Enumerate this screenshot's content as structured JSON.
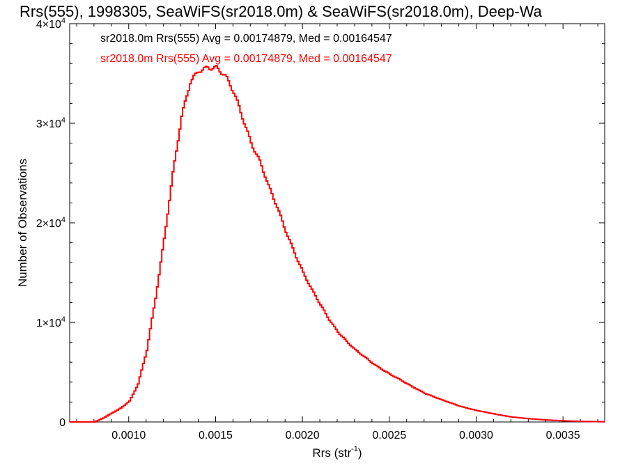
{
  "chart_data": {
    "type": "line",
    "title": "Rrs(555), 1998305, SeaWiFS(sr2018.0m) & SeaWiFS(sr2018.0m), Deep-Wa",
    "xlabel": {
      "base": "Rrs (str",
      "sup": "-1",
      "tail": ")"
    },
    "ylabel": "Number of Observations",
    "xlim": [
      0.00066,
      0.00374
    ],
    "ylim": [
      0,
      40000
    ],
    "grid": false,
    "legend_position": "top-left",
    "x_ticks": [
      {
        "value": 0.001,
        "label": "0.0010"
      },
      {
        "value": 0.0015,
        "label": "0.0015"
      },
      {
        "value": 0.002,
        "label": "0.0020"
      },
      {
        "value": 0.0025,
        "label": "0.0025"
      },
      {
        "value": 0.003,
        "label": "0.0030"
      },
      {
        "value": 0.0035,
        "label": "0.0035"
      }
    ],
    "y_ticks": [
      {
        "value": 0,
        "mant": "0",
        "sup": ""
      },
      {
        "value": 10000,
        "mant": "1×10",
        "sup": "4"
      },
      {
        "value": 20000,
        "mant": "2×10",
        "sup": "4"
      },
      {
        "value": 30000,
        "mant": "3×10",
        "sup": "4"
      },
      {
        "value": 40000,
        "mant": "4×10",
        "sup": "4"
      }
    ],
    "series": [
      {
        "name": "sr2018.0m Rrs(555) Avg = 0.00174879, Med = 0.00164547",
        "color": "#000000",
        "style": "step"
      },
      {
        "name": "sr2018.0m Rrs(555) Avg = 0.00174879, Med = 0.00164547",
        "color": "#ff0000",
        "style": "step"
      }
    ],
    "x": [
      0.00066,
      0.0008,
      0.00085,
      0.0009,
      0.00095,
      0.001,
      0.00105,
      0.0011,
      0.00115,
      0.0012,
      0.00125,
      0.0013,
      0.00135,
      0.0014,
      0.00145,
      0.0015,
      0.00155,
      0.0016,
      0.00165,
      0.0017,
      0.00175,
      0.0018,
      0.00185,
      0.0019,
      0.00195,
      0.002,
      0.00205,
      0.0021,
      0.00215,
      0.0022,
      0.00225,
      0.0023,
      0.0024,
      0.0025,
      0.0026,
      0.0027,
      0.0028,
      0.0029,
      0.003,
      0.0031,
      0.0032,
      0.0033,
      0.0034,
      0.0035,
      0.0036,
      0.00374
    ],
    "y": [
      0,
      0,
      400,
      900,
      1400,
      2100,
      3800,
      7200,
      12500,
      18500,
      25000,
      30500,
      34000,
      35400,
      35800,
      35600,
      34600,
      33000,
      30700,
      28200,
      26200,
      23600,
      21500,
      19200,
      17100,
      15000,
      13200,
      11700,
      10300,
      9100,
      8100,
      7200,
      5900,
      4800,
      3800,
      2900,
      2200,
      1600,
      1150,
      800,
      500,
      330,
      200,
      110,
      60,
      20
    ]
  }
}
